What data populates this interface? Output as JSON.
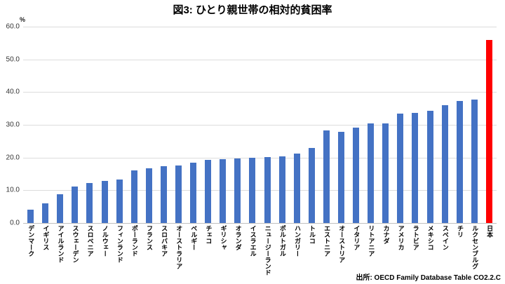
{
  "title": "図3: ひとり親世帯の相対的貧困率",
  "source_note": "出所: OECD Family Database Table CO2.2.C",
  "chart_data": {
    "type": "bar",
    "title": "図3: ひとり親世帯の相対的貧困率",
    "unit_label": "%",
    "xlabel": "",
    "ylabel": "%",
    "ylim": [
      0,
      60
    ],
    "yticks": [
      "60.0",
      "50.0",
      "40.0",
      "30.0",
      "20.0",
      "10.0",
      "0.0"
    ],
    "grid": true,
    "legend": "none",
    "categories": [
      "デンマーク",
      "イギリス",
      "アイルランド",
      "スウェーデン",
      "スロベニア",
      "ノルウェー",
      "フィンランド",
      "ポーランド",
      "フランス",
      "スロバキア",
      "オーストラリア",
      "ベルギー",
      "チェコ",
      "ギリシャ",
      "オランダ",
      "イスラエル",
      "ニュージーランド",
      "ポルトガル",
      "ハンガリー",
      "トルコ",
      "エストニア",
      "オーストリア",
      "イタリア",
      "リトアニア",
      "カナダ",
      "アメリカ",
      "ラトビア",
      "メキシコ",
      "スペイン",
      "チリ",
      "ルクセンブルグ",
      "日本"
    ],
    "values": [
      4.1,
      6.1,
      8.8,
      11.2,
      12.2,
      12.9,
      13.2,
      16.1,
      16.7,
      17.4,
      17.6,
      18.4,
      19.2,
      19.6,
      19.8,
      20.0,
      20.2,
      20.4,
      21.2,
      22.9,
      28.2,
      27.9,
      29.1,
      30.4,
      30.5,
      33.5,
      33.7,
      34.3,
      36.0,
      37.3,
      37.8,
      56.0
    ],
    "bar_color": "#4472C4",
    "highlight_category": "日本",
    "highlight_index": 31,
    "highlight_color": "#FF0000",
    "source": "出所: OECD Family Database Table CO2.2.C"
  }
}
